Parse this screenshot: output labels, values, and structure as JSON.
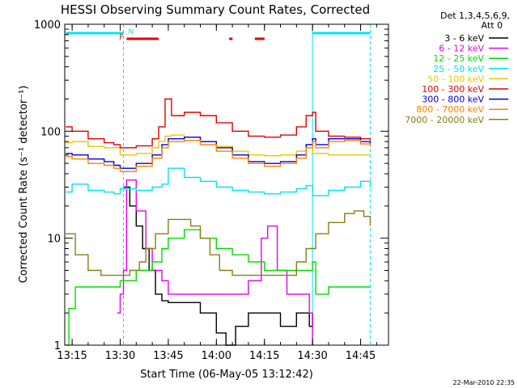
{
  "chart_data": {
    "type": "line",
    "title": "HESSI Observing Summary Count Rates, Corrected",
    "xlabel": "Start Time (06-May-05 13:12:42)",
    "ylabel": "Corrected Count Rate (s⁻¹ detector⁻¹)",
    "y_scale": "log",
    "ylim": [
      1,
      1000
    ],
    "x_ticks": [
      "13:15",
      "13:30",
      "13:45",
      "14:00",
      "14:15",
      "14:30",
      "14:45"
    ],
    "y_ticks": [
      "1",
      "10",
      "100",
      "1000"
    ],
    "legend_header": [
      "Det 1,3,4,5,6,9,",
      "Att 0"
    ],
    "legend_placement": "right",
    "timestamp": "22-Mar-2010 22:35",
    "flags": [
      {
        "label": "N",
        "color": "#00e5ee",
        "segments": [
          [
            "13:13",
            "13:31"
          ],
          [
            "14:30",
            "14:48"
          ]
        ]
      },
      {
        "label": "F",
        "color": "#e00000",
        "segments": [
          [
            "13:32",
            "13:42"
          ],
          [
            "14:04",
            "14:05"
          ],
          [
            "14:12",
            "14:15"
          ]
        ]
      }
    ],
    "vlines": [
      "13:31",
      "14:30",
      "14:48"
    ],
    "series": [
      {
        "name": "3 - 6 keV",
        "color": "#000000",
        "x": [
          "13:31",
          "13:33",
          "13:35",
          "13:37",
          "13:39",
          "13:41",
          "13:43",
          "13:45",
          "13:50",
          "13:55",
          "14:00",
          "14:03",
          "14:06",
          "14:10",
          "14:15",
          "14:20",
          "14:25",
          "14:28",
          "14:29",
          "14:30"
        ],
        "y": [
          30,
          20,
          13,
          8,
          5,
          3,
          2.6,
          2.5,
          2.5,
          2,
          1.3,
          1,
          1.5,
          2,
          2,
          1.5,
          2,
          2,
          1.5,
          2
        ]
      },
      {
        "name": "6 - 12 keV",
        "color": "#e800e8",
        "x": [
          "13:29",
          "13:30",
          "13:31",
          "13:32",
          "13:35",
          "13:38",
          "13:40",
          "13:43",
          "13:45",
          "13:50",
          "13:55",
          "14:00",
          "14:05",
          "14:10",
          "14:14",
          "14:16",
          "14:19",
          "14:22",
          "14:25",
          "14:28",
          "14:29",
          "14:30"
        ],
        "y": [
          2,
          3,
          5,
          35,
          18,
          8,
          5,
          4,
          3,
          3,
          3,
          3,
          3,
          4,
          10,
          13,
          5,
          3,
          3,
          3,
          2,
          1
        ]
      },
      {
        "name": "12 - 25 keV",
        "color": "#00dd00",
        "x": [
          "13:13",
          "13:14",
          "13:16",
          "13:20",
          "13:25",
          "13:30",
          "13:35",
          "13:40",
          "13:43",
          "13:45",
          "13:50",
          "13:55",
          "14:00",
          "14:05",
          "14:10",
          "14:15",
          "14:20",
          "14:25",
          "14:30",
          "14:31",
          "14:35",
          "14:40",
          "14:45",
          "14:48"
        ],
        "y": [
          1,
          2.2,
          3.5,
          3.5,
          3.5,
          4,
          5,
          6,
          8,
          10,
          12,
          10,
          8,
          7,
          6,
          5,
          5,
          5,
          6,
          3,
          3.5,
          3.5,
          3.5,
          3.5
        ]
      },
      {
        "name": "25 - 50 keV",
        "color": "#00e5ee",
        "x": [
          "13:13",
          "13:15",
          "13:20",
          "13:25",
          "13:28",
          "13:30",
          "13:35",
          "13:40",
          "13:43",
          "13:45",
          "13:50",
          "13:55",
          "14:00",
          "14:05",
          "14:10",
          "14:15",
          "14:20",
          "14:25",
          "14:28",
          "14:30",
          "14:35",
          "14:40",
          "14:45",
          "14:48"
        ],
        "y": [
          27,
          32,
          28,
          27,
          26,
          29,
          28,
          30,
          32,
          45,
          37,
          34,
          30,
          28,
          27,
          26,
          27,
          29,
          31,
          25,
          28,
          30,
          34,
          30
        ]
      },
      {
        "name": "50 - 100 keV",
        "color": "#e6c800",
        "x": [
          "13:13",
          "13:15",
          "13:20",
          "13:25",
          "13:30",
          "13:35",
          "13:40",
          "13:42",
          "13:44",
          "13:46",
          "13:50",
          "13:55",
          "14:00",
          "14:05",
          "14:10",
          "14:15",
          "14:20",
          "14:25",
          "14:28",
          "14:30",
          "14:35",
          "14:40",
          "14:45",
          "14:48"
        ],
        "y": [
          78,
          80,
          72,
          70,
          60,
          62,
          70,
          80,
          90,
          92,
          88,
          80,
          72,
          65,
          60,
          59,
          60,
          65,
          75,
          62,
          60,
          60,
          60,
          60
        ]
      },
      {
        "name": "100 - 300 keV",
        "color": "#e00000",
        "x": [
          "13:13",
          "13:15",
          "13:20",
          "13:25",
          "13:28",
          "13:30",
          "13:35",
          "13:40",
          "13:42",
          "13:44",
          "13:46",
          "13:50",
          "13:55",
          "14:00",
          "14:05",
          "14:10",
          "14:15",
          "14:20",
          "14:25",
          "14:28",
          "14:30",
          "14:31",
          "14:35",
          "14:40",
          "14:45",
          "14:48"
        ],
        "y": [
          110,
          100,
          85,
          78,
          75,
          70,
          73,
          85,
          110,
          200,
          140,
          150,
          140,
          120,
          100,
          90,
          88,
          92,
          110,
          140,
          150,
          100,
          90,
          88,
          85,
          82
        ]
      },
      {
        "name": "300 - 800 keV",
        "color": "#0000e0",
        "x": [
          "13:13",
          "13:15",
          "13:20",
          "13:25",
          "13:28",
          "13:30",
          "13:35",
          "13:40",
          "13:43",
          "13:45",
          "13:50",
          "13:55",
          "14:00",
          "14:05",
          "14:10",
          "14:15",
          "14:20",
          "14:25",
          "14:28",
          "14:30",
          "14:31",
          "14:35",
          "14:40",
          "14:45",
          "14:48"
        ],
        "y": [
          62,
          60,
          55,
          52,
          48,
          45,
          50,
          60,
          75,
          85,
          88,
          80,
          70,
          60,
          52,
          50,
          52,
          60,
          75,
          85,
          75,
          85,
          85,
          80,
          75
        ]
      },
      {
        "name": "800 - 7000 keV",
        "color": "#ff8000",
        "x": [
          "13:13",
          "13:15",
          "13:20",
          "13:25",
          "13:28",
          "13:30",
          "13:35",
          "13:40",
          "13:43",
          "13:45",
          "13:50",
          "13:55",
          "14:00",
          "14:05",
          "14:10",
          "14:15",
          "14:20",
          "14:25",
          "14:28",
          "14:30",
          "14:31",
          "14:35",
          "14:40",
          "14:45",
          "14:48"
        ],
        "y": [
          58,
          55,
          50,
          48,
          45,
          42,
          47,
          56,
          70,
          80,
          82,
          75,
          65,
          56,
          50,
          47,
          50,
          56,
          70,
          80,
          70,
          80,
          82,
          76,
          72
        ]
      },
      {
        "name": "7000 - 20000 keV",
        "color": "#8b7d14",
        "x": [
          "13:13",
          "13:16",
          "13:20",
          "13:24",
          "13:27",
          "13:30",
          "13:33",
          "13:36",
          "13:38",
          "13:41",
          "13:45",
          "13:48",
          "13:52",
          "13:55",
          "13:58",
          "14:01",
          "14:05",
          "14:10",
          "14:15",
          "14:20",
          "14:25",
          "14:28",
          "14:31",
          "14:35",
          "14:40",
          "14:43",
          "14:46",
          "14:48"
        ],
        "y": [
          11,
          7,
          5,
          4.5,
          4.5,
          4.5,
          5,
          6,
          8,
          11,
          15,
          15,
          13,
          10,
          7,
          5,
          4.5,
          4.5,
          4.5,
          4.5,
          6,
          8,
          11,
          14,
          17,
          18,
          16,
          13
        ]
      }
    ]
  }
}
